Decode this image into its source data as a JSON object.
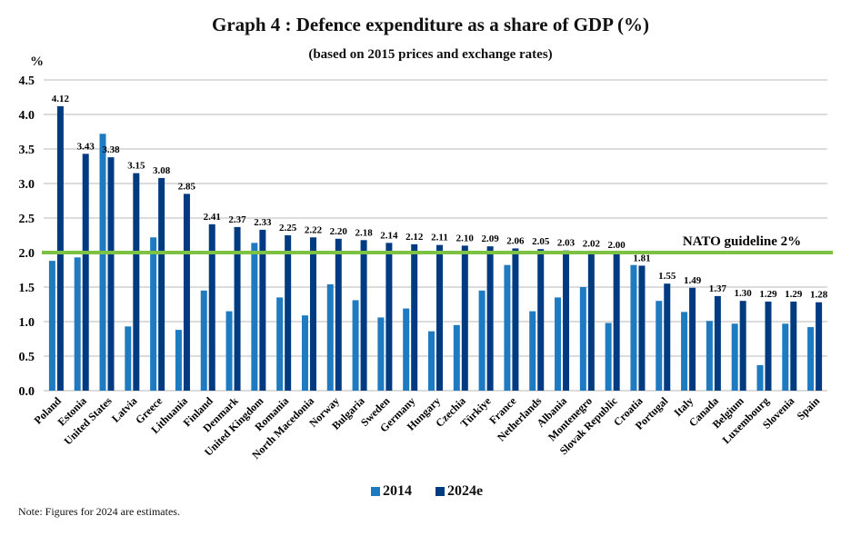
{
  "chart_data": {
    "type": "bar",
    "title": "Graph 4 : Defence expenditure as a share of GDP (%)",
    "subtitle": "(based on 2015 prices and exchange rates)",
    "ylabel": "%",
    "xlabel": "",
    "ylim": [
      0,
      4.5
    ],
    "yticks": [
      "0.0",
      "0.5",
      "1.0",
      "1.5",
      "2.0",
      "2.5",
      "3.0",
      "3.5",
      "4.0",
      "4.5"
    ],
    "grid": true,
    "legend_position": "bottom-center",
    "categories": [
      "Poland",
      "Estonia",
      "United States",
      "Latvia",
      "Greece",
      "Lithuania",
      "Finland",
      "Denmark",
      "United Kingdom",
      "Romania",
      "North Macedonia",
      "Norway",
      "Bulgaria",
      "Sweden",
      "Germany",
      "Hungary",
      "Czechia",
      "Türkiye",
      "France",
      "Netherlands",
      "Albania",
      "Montenegro",
      "Slovak Republic",
      "Croatia",
      "Portugal",
      "Italy",
      "Canada",
      "Belgium",
      "Luxembourg",
      "Slovenia",
      "Spain"
    ],
    "series": [
      {
        "name": "2014",
        "color": "#1f7bc1",
        "values": [
          1.88,
          1.93,
          3.72,
          0.93,
          2.22,
          0.88,
          1.45,
          1.15,
          2.14,
          1.35,
          1.09,
          1.54,
          1.31,
          1.06,
          1.19,
          0.86,
          0.95,
          1.45,
          1.82,
          1.15,
          1.35,
          1.5,
          0.98,
          1.82,
          1.3,
          1.14,
          1.01,
          0.97,
          0.37,
          0.97,
          0.92
        ],
        "labeled": false
      },
      {
        "name": "2024e",
        "color": "#003a80",
        "values": [
          4.12,
          3.43,
          3.38,
          3.15,
          3.08,
          2.85,
          2.41,
          2.37,
          2.33,
          2.25,
          2.22,
          2.2,
          2.18,
          2.14,
          2.12,
          2.11,
          2.1,
          2.09,
          2.06,
          2.05,
          2.03,
          2.02,
          2.0,
          1.81,
          1.55,
          1.49,
          1.37,
          1.3,
          1.29,
          1.29,
          1.28
        ],
        "value_labels": [
          "4.12",
          "3.43",
          "3.38",
          "3.15",
          "3.08",
          "2.85",
          "2.41",
          "2.37",
          "2.33",
          "2.25",
          "2.22",
          "2.20",
          "2.18",
          "2.14",
          "2.12",
          "2.11",
          "2.10",
          "2.09",
          "2.06",
          "2.05",
          "2.03",
          "2.02",
          "2.00",
          "1.81",
          "1.55",
          "1.49",
          "1.37",
          "1.30",
          "1.29",
          "1.29",
          "1.28"
        ],
        "labeled": true
      }
    ],
    "reference_line": {
      "value": 2.0,
      "label": "NATO guideline 2%",
      "color": "#7dc242"
    },
    "note": "Note: Figures for 2024 are estimates."
  }
}
